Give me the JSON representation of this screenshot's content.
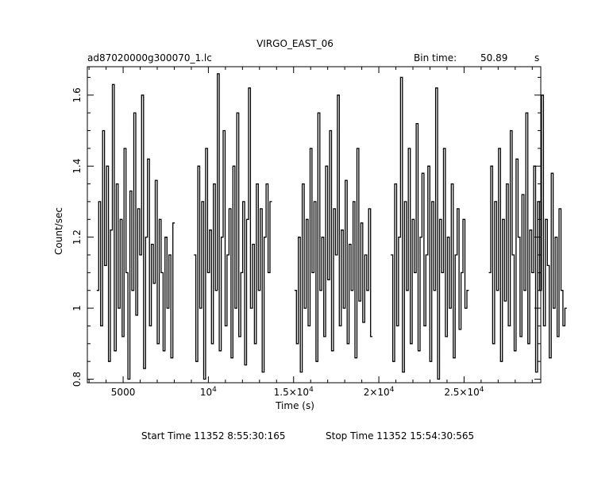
{
  "header": {
    "title": "VIRGO_EAST_06",
    "filename": "ad87020000g300070_1.lc",
    "bin_time_label": "Bin time:",
    "bin_time_value": "50.89",
    "bin_time_unit": "s"
  },
  "footer": {
    "start_time": "Start Time 11352  8:55:30:165",
    "stop_time": "Stop Time 11352 15:54:30:565"
  },
  "chart_data": {
    "type": "line",
    "title": "VIRGO_EAST_06",
    "xlabel": "Time (s)",
    "ylabel": "Count/sec",
    "xlim": [
      2900,
      29500
    ],
    "ylim": [
      0.79,
      1.68
    ],
    "x_ticks": [
      {
        "value": 5000,
        "label": "5000"
      },
      {
        "value": 10000,
        "label": "10^4"
      },
      {
        "value": 15000,
        "label": "1.5×10^4"
      },
      {
        "value": 20000,
        "label": "2×10^4"
      },
      {
        "value": 25000,
        "label": "2.5×10^4"
      }
    ],
    "y_ticks": [
      {
        "value": 0.8,
        "label": "0.8"
      },
      {
        "value": 1.0,
        "label": "1"
      },
      {
        "value": 1.2,
        "label": "1.2"
      },
      {
        "value": 1.4,
        "label": "1.4"
      },
      {
        "value": 1.6,
        "label": "1.6"
      }
    ],
    "bin_width": 50.89,
    "segments": [
      {
        "x_start": 3450,
        "values": [
          1.05,
          1.3,
          0.95,
          1.5,
          1.12,
          1.4,
          0.85,
          1.22,
          1.63,
          0.88,
          1.35,
          1.0,
          1.25,
          0.92,
          1.45,
          1.1,
          0.8,
          1.33,
          1.05,
          1.55,
          0.98,
          1.28,
          1.15,
          1.6,
          0.83,
          1.2,
          1.42,
          0.95,
          1.18,
          1.07,
          1.36,
          0.9,
          1.25,
          1.1,
          0.88,
          1.2,
          1.0,
          1.15,
          0.86,
          1.24
        ]
      },
      {
        "x_start": 9150,
        "values": [
          1.15,
          0.85,
          1.4,
          1.0,
          1.3,
          0.8,
          1.45,
          1.1,
          1.22,
          0.9,
          1.35,
          1.05,
          1.66,
          0.88,
          1.2,
          1.5,
          0.95,
          1.15,
          1.28,
          0.86,
          1.4,
          1.0,
          1.55,
          0.92,
          1.1,
          1.3,
          0.84,
          1.25,
          1.62,
          1.0,
          1.18,
          0.9,
          1.35,
          1.05,
          1.28,
          0.82,
          1.2,
          1.35,
          1.1,
          1.3
        ]
      },
      {
        "x_start": 15050,
        "values": [
          1.05,
          0.9,
          1.2,
          0.82,
          1.35,
          1.0,
          1.25,
          0.95,
          1.45,
          1.1,
          1.3,
          0.85,
          1.55,
          1.05,
          1.2,
          0.92,
          1.4,
          1.08,
          1.5,
          0.88,
          1.28,
          1.15,
          1.6,
          0.95,
          1.22,
          1.0,
          1.36,
          0.9,
          1.18,
          1.05,
          1.3,
          0.86,
          1.45,
          1.02,
          1.24,
          0.96,
          1.15,
          1.05,
          1.28,
          0.92
        ]
      },
      {
        "x_start": 20700,
        "values": [
          1.15,
          0.85,
          1.35,
          0.95,
          1.2,
          1.65,
          0.82,
          1.3,
          1.05,
          1.45,
          0.9,
          1.25,
          1.1,
          1.52,
          0.88,
          1.2,
          1.38,
          0.95,
          1.15,
          1.4,
          0.85,
          1.3,
          1.05,
          1.62,
          0.8,
          1.25,
          1.1,
          1.45,
          0.92,
          1.2,
          1.0,
          1.35,
          0.86,
          1.15,
          1.28,
          0.94,
          1.1,
          1.25,
          1.0,
          1.05
        ]
      },
      {
        "x_start": 26450,
        "values": [
          1.1,
          1.4,
          0.9,
          1.3,
          1.05,
          1.45,
          0.85,
          1.25,
          1.02,
          1.35,
          0.95,
          1.5,
          1.15,
          0.88,
          1.42,
          1.2,
          0.92,
          1.32,
          1.05,
          1.55,
          0.9,
          1.22,
          1.1,
          1.4,
          0.82,
          1.3,
          1.05,
          1.6,
          0.95,
          1.25,
          1.12,
          0.86,
          1.38,
          1.0,
          1.2,
          0.92,
          1.28,
          1.05,
          0.95,
          1.0
        ]
      }
    ]
  }
}
